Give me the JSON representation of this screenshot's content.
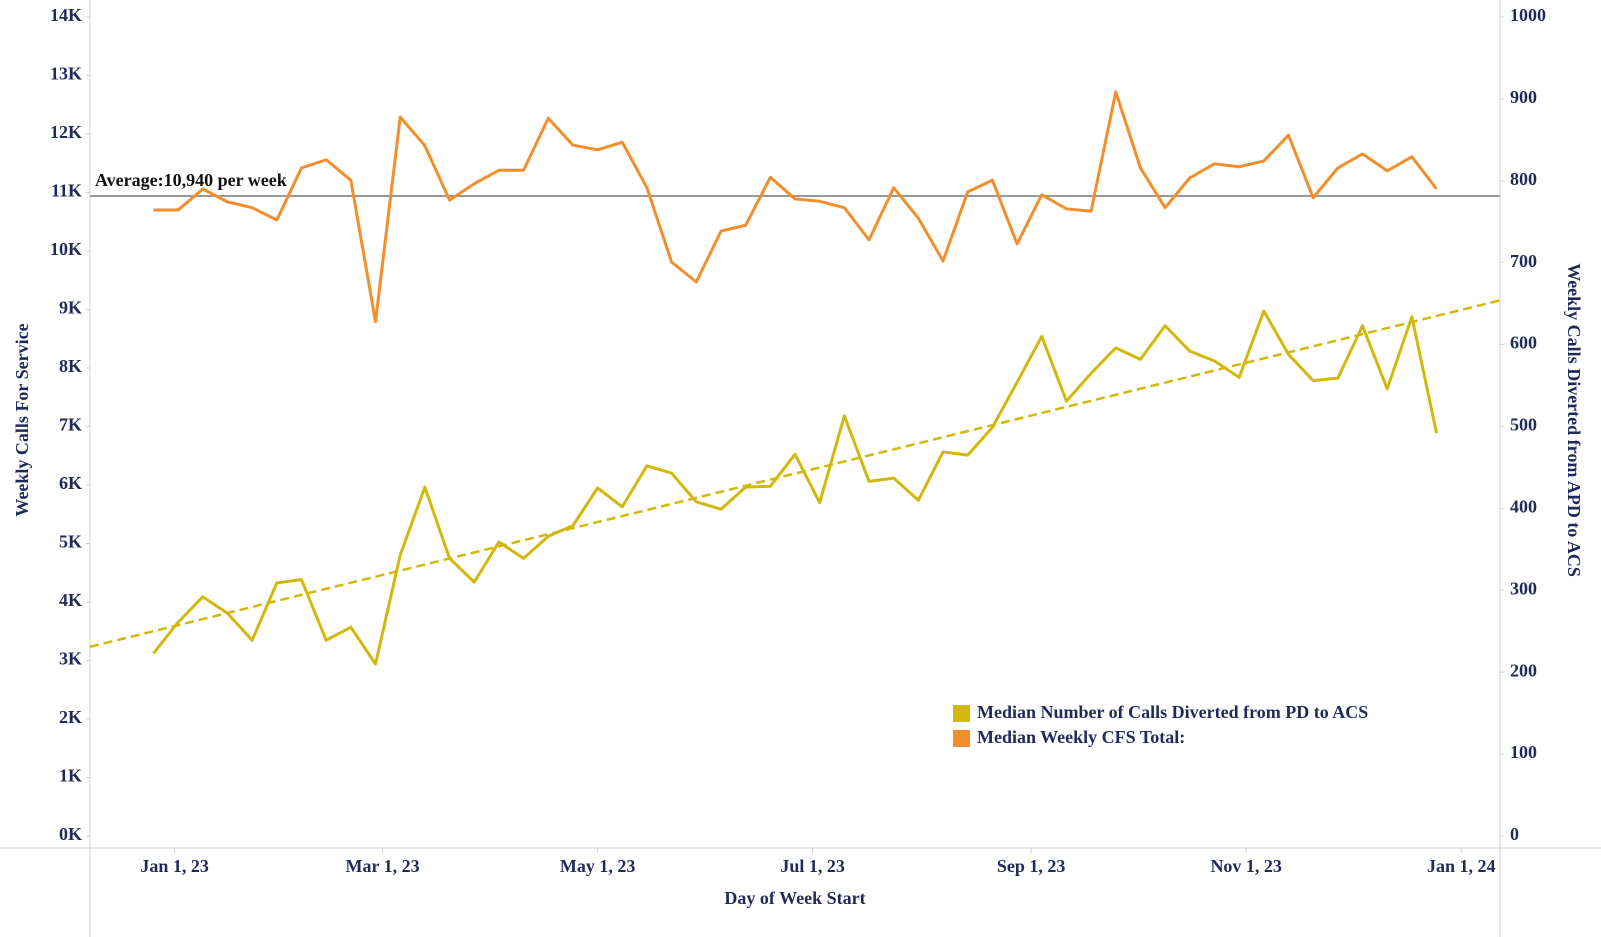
{
  "chart_data": {
    "type": "line",
    "x_label": "Day of Week Start",
    "y_label": "Weekly Calls For Service",
    "y2_label": "Weekly Calls Diverted from APD to ACS",
    "x": [
      "2022-12-26",
      "2023-01-02",
      "2023-01-09",
      "2023-01-16",
      "2023-01-23",
      "2023-01-30",
      "2023-02-06",
      "2023-02-13",
      "2023-02-20",
      "2023-02-27",
      "2023-03-06",
      "2023-03-13",
      "2023-03-20",
      "2023-03-27",
      "2023-04-03",
      "2023-04-10",
      "2023-04-17",
      "2023-04-24",
      "2023-05-01",
      "2023-05-08",
      "2023-05-15",
      "2023-05-22",
      "2023-05-29",
      "2023-06-05",
      "2023-06-12",
      "2023-06-19",
      "2023-06-26",
      "2023-07-03",
      "2023-07-10",
      "2023-07-17",
      "2023-07-24",
      "2023-07-31",
      "2023-08-07",
      "2023-08-14",
      "2023-08-21",
      "2023-08-28",
      "2023-09-04",
      "2023-09-11",
      "2023-09-18",
      "2023-09-25",
      "2023-10-02",
      "2023-10-09",
      "2023-10-16",
      "2023-10-23",
      "2023-10-30",
      "2023-11-06",
      "2023-11-13",
      "2023-11-20",
      "2023-11-27",
      "2023-12-04",
      "2023-12-11",
      "2023-12-18",
      "2023-12-25"
    ],
    "series": [
      {
        "name": "Median Number of Calls Diverted from PD to ACS",
        "color": "#d2b80c",
        "axis": "y2",
        "values": [
          223,
          261,
          292,
          272,
          239,
          309,
          313,
          239,
          255,
          210,
          343,
          426,
          339,
          310,
          359,
          339,
          366,
          379,
          425,
          402,
          452,
          443,
          408,
          399,
          426,
          427,
          466,
          407,
          513,
          433,
          437,
          410,
          469,
          465,
          499,
          554,
          610,
          531,
          565,
          596,
          582,
          623,
          592,
          580,
          560,
          641,
          588,
          556,
          559,
          623,
          546,
          634,
          492
        ]
      },
      {
        "name": "Median Weekly CFS Total:",
        "color": "#f28e2b",
        "values": [
          10700,
          10700,
          11060,
          10840,
          10740,
          10530,
          11420,
          11560,
          11210,
          8790,
          12290,
          11800,
          10870,
          11150,
          11380,
          11380,
          12270,
          11810,
          11730,
          11860,
          11080,
          9810,
          9470,
          10340,
          10440,
          11260,
          10890,
          10850,
          10740,
          10190,
          11080,
          10560,
          9830,
          11010,
          11210,
          10120,
          10960,
          10720,
          10680,
          12720,
          11420,
          10740,
          11250,
          11490,
          11440,
          11540,
          11980,
          10910,
          11420,
          11660,
          11370,
          11610,
          11060
        ]
      }
    ],
    "trendline": {
      "x": [
        "2022-12-08",
        "2024-01-12"
      ],
      "values": [
        231,
        654
      ],
      "color": "#d2b80c",
      "axis": "y2"
    },
    "reference_line": {
      "value": 10940,
      "label": "Average:10,940 per week",
      "color": "#999999"
    },
    "xlim": [
      "2022-12-08",
      "2024-01-12"
    ],
    "xticks": [
      {
        "value": "2023-01-01",
        "label": "Jan 1, 23"
      },
      {
        "value": "2023-03-01",
        "label": "Mar 1, 23"
      },
      {
        "value": "2023-05-01",
        "label": "May 1, 23"
      },
      {
        "value": "2023-07-01",
        "label": "Jul 1, 23"
      },
      {
        "value": "2023-09-01",
        "label": "Sep 1, 23"
      },
      {
        "value": "2023-11-01",
        "label": "Nov 1, 23"
      },
      {
        "value": "2024-01-01",
        "label": "Jan 1, 24"
      }
    ],
    "ylim": [
      0,
      14000
    ],
    "yticks": [
      {
        "value": 0,
        "label": "0K"
      },
      {
        "value": 1000,
        "label": "1K"
      },
      {
        "value": 2000,
        "label": "2K"
      },
      {
        "value": 3000,
        "label": "3K"
      },
      {
        "value": 4000,
        "label": "4K"
      },
      {
        "value": 5000,
        "label": "5K"
      },
      {
        "value": 6000,
        "label": "6K"
      },
      {
        "value": 7000,
        "label": "7K"
      },
      {
        "value": 8000,
        "label": "8K"
      },
      {
        "value": 9000,
        "label": "9K"
      },
      {
        "value": 10000,
        "label": "10K"
      },
      {
        "value": 11000,
        "label": "11K"
      },
      {
        "value": 12000,
        "label": "12K"
      },
      {
        "value": 13000,
        "label": "13K"
      },
      {
        "value": 14000,
        "label": "14K"
      }
    ],
    "y2lim": [
      0,
      1000
    ],
    "y2ticks": [
      0,
      100,
      200,
      300,
      400,
      500,
      600,
      700,
      800,
      900,
      1000
    ],
    "grid": false
  }
}
